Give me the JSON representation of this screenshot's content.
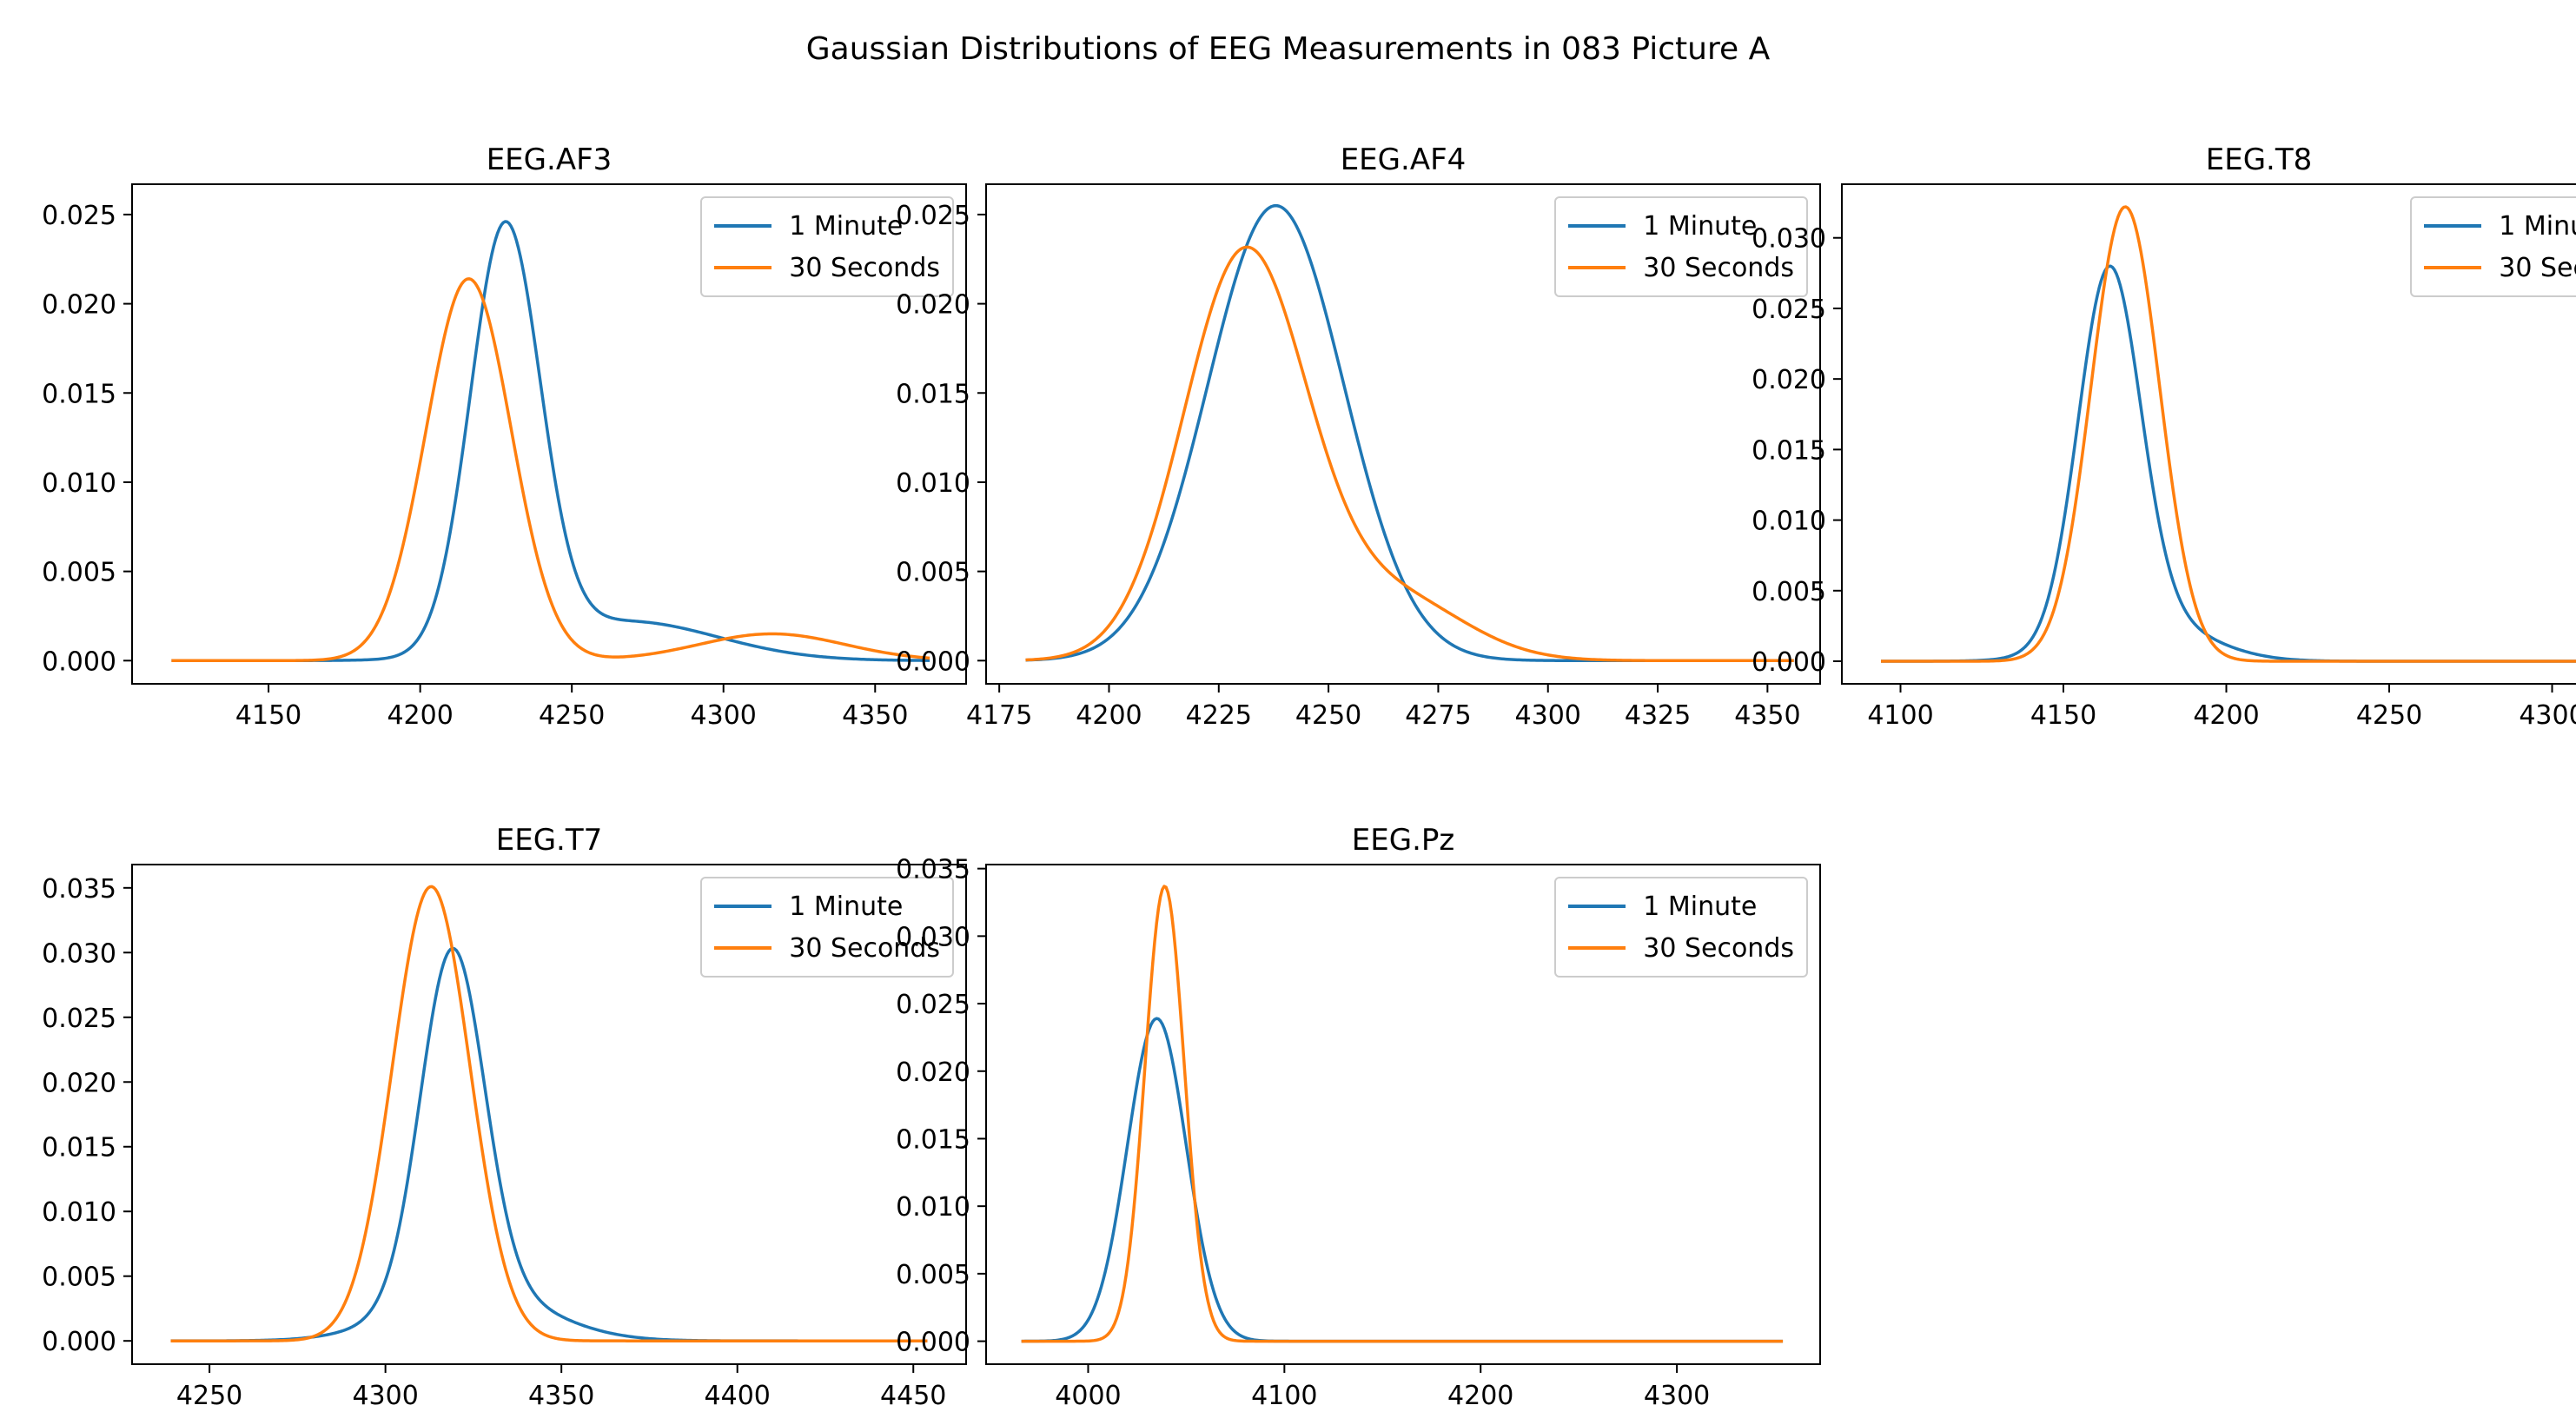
{
  "chart_data": {
    "type": "line",
    "title": "Gaussian Distributions of EEG Measurements in 083 Picture A",
    "legend": {
      "placement": "top-right",
      "entries": [
        "1 Minute",
        "30 Seconds"
      ]
    },
    "colors": {
      "1 Minute": "#1f77b4",
      "30 Seconds": "#ff7f0e"
    },
    "subplots": [
      {
        "title": "EEG.AF3",
        "xlim": [
          4105,
          4380
        ],
        "ylim": [
          -0.0013,
          0.0267
        ],
        "xticks": [
          4150,
          4200,
          4250,
          4300,
          4350
        ],
        "yticks": [
          0.0,
          0.005,
          0.01,
          0.015,
          0.02,
          0.025
        ],
        "yfmt": 3,
        "xrange": [
          4118,
          4368
        ],
        "series": [
          {
            "name": "1 Minute",
            "components": [
              [
                0.0237,
                4228,
                11.5
              ],
              [
                0.0022,
                4268,
                30
              ]
            ]
          },
          {
            "name": "30 Seconds",
            "components": [
              [
                0.0214,
                4216,
                14
              ],
              [
                0.0015,
                4316,
                24
              ]
            ]
          }
        ]
      },
      {
        "title": "EEG.AF4",
        "xlim": [
          4172,
          4362
        ],
        "ylim": [
          -0.0013,
          0.0267
        ],
        "xticks": [
          4175,
          4200,
          4225,
          4250,
          4275,
          4300,
          4325,
          4350
        ],
        "yticks": [
          0.0,
          0.005,
          0.01,
          0.015,
          0.02,
          0.025
        ],
        "yfmt": 3,
        "xrange": [
          4181,
          4356
        ],
        "series": [
          {
            "name": "1 Minute",
            "components": [
              [
                0.0255,
                4238,
                15.5
              ]
            ]
          },
          {
            "name": "30 Seconds",
            "components": [
              [
                0.0228,
                4231,
                14
              ],
              [
                0.0035,
                4265,
                16
              ]
            ]
          }
        ]
      },
      {
        "title": "EEG.T8",
        "xlim": [
          4082,
          4338
        ],
        "ylim": [
          -0.0016,
          0.0338
        ],
        "xticks": [
          4100,
          4150,
          4200,
          4250,
          4300
        ],
        "yticks": [
          0.0,
          0.005,
          0.01,
          0.015,
          0.02,
          0.025,
          0.03
        ],
        "yfmt": 3,
        "xrange": [
          4094,
          4327
        ],
        "series": [
          {
            "name": "1 Minute",
            "components": [
              [
                0.0255,
                4164,
                9.5
              ],
              [
                0.003,
                4175,
                18
              ]
            ]
          },
          {
            "name": "30 Seconds",
            "components": [
              [
                0.0322,
                4169,
                10.5
              ]
            ]
          }
        ]
      },
      {
        "title": "EEG.T7",
        "xlim": [
          4228,
          4465
        ],
        "ylim": [
          -0.0018,
          0.0368
        ],
        "xticks": [
          4250,
          4300,
          4350,
          4400,
          4450
        ],
        "yticks": [
          0.0,
          0.005,
          0.01,
          0.015,
          0.02,
          0.025,
          0.03,
          0.035
        ],
        "yfmt": 3,
        "xrange": [
          4239,
          4454
        ],
        "series": [
          {
            "name": "1 Minute",
            "components": [
              [
                0.0265,
                4319,
                9
              ],
              [
                0.004,
                4325,
                20
              ]
            ]
          },
          {
            "name": "30 Seconds",
            "components": [
              [
                0.0351,
                4313,
                11
              ]
            ]
          }
        ]
      },
      {
        "title": "EEG.Pz",
        "xlim": [
          3948,
          4373
        ],
        "ylim": [
          -0.0017,
          0.0353
        ],
        "xticks": [
          4000,
          4100,
          4200,
          4300
        ],
        "yticks": [
          0.0,
          0.005,
          0.01,
          0.015,
          0.02,
          0.025,
          0.03,
          0.035
        ],
        "yfmt": 3,
        "xrange": [
          3966,
          4354
        ],
        "series": [
          {
            "name": "1 Minute",
            "components": [
              [
                0.0239,
                4035,
                15
              ]
            ]
          },
          {
            "name": "30 Seconds",
            "components": [
              [
                0.0337,
                4039,
                10
              ]
            ]
          }
        ]
      }
    ]
  }
}
